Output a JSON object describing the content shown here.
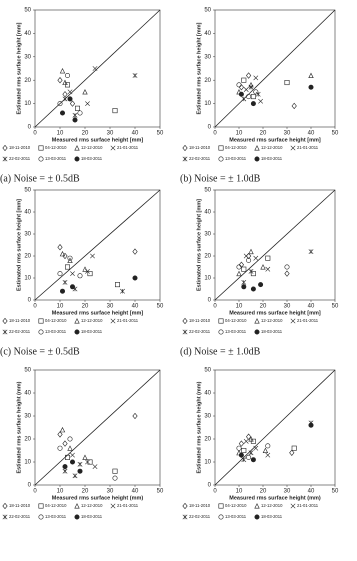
{
  "chart_data": [
    {
      "type": "scatter",
      "caption": "(a) Noise = ± 0.5dB",
      "xlabel": "Measured rms surface height [mm]",
      "ylabel": "Estimated rms surface height [mm]",
      "xlim": [
        0,
        50
      ],
      "ylim": [
        0,
        50
      ],
      "xticks": [
        0,
        10,
        20,
        30,
        40,
        50
      ],
      "yticks": [
        0,
        10,
        20,
        30,
        40,
        50
      ],
      "color": "#222222",
      "series": [
        {
          "name": "18-11-2010",
          "marker": "diamond",
          "x": [
            10,
            12,
            15
          ],
          "values": [
            20,
            14,
            10
          ]
        },
        {
          "name": "04-12-2010",
          "marker": "square",
          "x": [
            13,
            17,
            32
          ],
          "values": [
            18,
            8,
            7
          ]
        },
        {
          "name": "12-12-2010",
          "marker": "triangle",
          "x": [
            11,
            12,
            20
          ],
          "values": [
            24,
            19,
            15
          ]
        },
        {
          "name": "21-01-2011",
          "marker": "cross",
          "x": [
            14,
            21,
            24
          ],
          "values": [
            15,
            10,
            25
          ]
        },
        {
          "name": "22-02-2011",
          "marker": "star",
          "x": [
            12,
            16,
            40
          ],
          "values": [
            12,
            5,
            22
          ]
        },
        {
          "name": "13-03-2011",
          "marker": "circle",
          "x": [
            10,
            13,
            18
          ],
          "values": [
            10,
            22,
            6
          ]
        },
        {
          "name": "18-03-2011",
          "marker": "dot",
          "x": [
            11,
            14,
            16
          ],
          "values": [
            6,
            12,
            3
          ]
        }
      ]
    },
    {
      "type": "scatter",
      "caption": "(b) Noise = ± 1.0dB",
      "xlabel": "Measured rms surface height [mm]",
      "ylabel": "Estimated rms surface height [mm]",
      "xlim": [
        0,
        50
      ],
      "ylim": [
        0,
        50
      ],
      "xticks": [
        0,
        10,
        20,
        30,
        40,
        50
      ],
      "yticks": [
        0,
        10,
        20,
        30,
        40,
        50
      ],
      "color": "#222222",
      "series": [
        {
          "name": "18-11-2010",
          "marker": "diamond",
          "x": [
            11,
            14,
            33
          ],
          "values": [
            17,
            22,
            9
          ]
        },
        {
          "name": "04-12-2010",
          "marker": "square",
          "x": [
            12,
            16,
            30
          ],
          "values": [
            20,
            13,
            19
          ]
        },
        {
          "name": "12-12-2010",
          "marker": "triangle",
          "x": [
            10,
            15,
            40
          ],
          "values": [
            15,
            18,
            22
          ]
        },
        {
          "name": "21-01-2011",
          "marker": "cross",
          "x": [
            13,
            17,
            19
          ],
          "values": [
            16,
            21,
            11
          ]
        },
        {
          "name": "22-02-2011",
          "marker": "star",
          "x": [
            12,
            15,
            18
          ],
          "values": [
            12,
            17,
            14
          ]
        },
        {
          "name": "13-03-2011",
          "marker": "circle",
          "x": [
            10,
            14,
            17
          ],
          "values": [
            18,
            13,
            15
          ]
        },
        {
          "name": "18-03-2011",
          "marker": "dot",
          "x": [
            11,
            16,
            40
          ],
          "values": [
            14,
            10,
            17
          ]
        }
      ]
    },
    {
      "type": "scatter",
      "caption": "(c) Noise = ± 0.5dB",
      "xlabel": "Measured rms surface height [mm]",
      "ylabel": "Estimated rms surface height [mm]",
      "xlim": [
        0,
        50
      ],
      "ylim": [
        0,
        50
      ],
      "xticks": [
        0,
        10,
        20,
        30,
        40,
        50
      ],
      "yticks": [
        0,
        10,
        20,
        30,
        40,
        50
      ],
      "color": "#222222",
      "series": [
        {
          "name": "18-11-2010",
          "marker": "diamond",
          "x": [
            10,
            12,
            40
          ],
          "values": [
            24,
            20,
            22
          ]
        },
        {
          "name": "04-12-2010",
          "marker": "square",
          "x": [
            13,
            22,
            33
          ],
          "values": [
            15,
            12,
            7
          ]
        },
        {
          "name": "12-12-2010",
          "marker": "triangle",
          "x": [
            11,
            14,
            20
          ],
          "values": [
            21,
            18,
            14
          ]
        },
        {
          "name": "21-01-2011",
          "marker": "cross",
          "x": [
            15,
            21,
            23
          ],
          "values": [
            12,
            13,
            20
          ]
        },
        {
          "name": "22-02-2011",
          "marker": "star",
          "x": [
            12,
            16,
            35
          ],
          "values": [
            8,
            5,
            4
          ]
        },
        {
          "name": "13-03-2011",
          "marker": "circle",
          "x": [
            10,
            14,
            18
          ],
          "values": [
            12,
            19,
            11
          ]
        },
        {
          "name": "18-03-2011",
          "marker": "dot",
          "x": [
            11,
            15,
            40
          ],
          "values": [
            4,
            6,
            10
          ]
        }
      ]
    },
    {
      "type": "scatter",
      "caption": "(d) Noise = ± 1.0dB",
      "xlabel": "Measured rms surface height [mm]",
      "ylabel": "Estimated rms surface height [mm]",
      "xlim": [
        0,
        50
      ],
      "ylim": [
        0,
        50
      ],
      "xticks": [
        0,
        10,
        20,
        30,
        40,
        50
      ],
      "yticks": [
        0,
        10,
        20,
        30,
        40,
        50
      ],
      "color": "#222222",
      "series": [
        {
          "name": "18-11-2010",
          "marker": "diamond",
          "x": [
            11,
            14,
            30
          ],
          "values": [
            16,
            20,
            12
          ]
        },
        {
          "name": "04-12-2010",
          "marker": "square",
          "x": [
            12,
            16,
            22
          ],
          "values": [
            14,
            12,
            19
          ]
        },
        {
          "name": "12-12-2010",
          "marker": "triangle",
          "x": [
            10,
            15,
            20
          ],
          "values": [
            12,
            22,
            15
          ]
        },
        {
          "name": "21-01-2011",
          "marker": "cross",
          "x": [
            13,
            17,
            22
          ],
          "values": [
            20,
            19,
            14
          ]
        },
        {
          "name": "22-02-2011",
          "marker": "star",
          "x": [
            12,
            15,
            40
          ],
          "values": [
            8,
            13,
            22
          ]
        },
        {
          "name": "13-03-2011",
          "marker": "circle",
          "x": [
            10,
            14,
            30
          ],
          "values": [
            15,
            18,
            15
          ]
        },
        {
          "name": "18-03-2011",
          "marker": "dot",
          "x": [
            12,
            16,
            19
          ],
          "values": [
            6,
            5,
            7
          ]
        }
      ]
    },
    {
      "type": "scatter",
      "xlabel": "Measured rms surface height (mm)",
      "ylabel": "Estimated rms surface height (mm)",
      "xlim": [
        0,
        50
      ],
      "ylim": [
        0,
        50
      ],
      "xticks": [
        0,
        10,
        20,
        30,
        40,
        50
      ],
      "yticks": [
        0,
        10,
        20,
        30,
        40,
        50
      ],
      "color": "#222222",
      "series": [
        {
          "name": "18-11-2010",
          "marker": "diamond",
          "x": [
            10,
            12,
            40
          ],
          "values": [
            22,
            18,
            30
          ]
        },
        {
          "name": "04-12-2010",
          "marker": "square",
          "x": [
            13,
            22,
            32
          ],
          "values": [
            12,
            10,
            6
          ]
        },
        {
          "name": "12-12-2010",
          "marker": "triangle",
          "x": [
            11,
            14,
            20
          ],
          "values": [
            24,
            16,
            12
          ]
        },
        {
          "name": "21-01-2011",
          "marker": "cross",
          "x": [
            15,
            21,
            24
          ],
          "values": [
            13,
            10,
            8
          ]
        },
        {
          "name": "22-02-2011",
          "marker": "star",
          "x": [
            12,
            16,
            18
          ],
          "values": [
            6,
            4,
            9
          ]
        },
        {
          "name": "13-03-2011",
          "marker": "circle",
          "x": [
            10,
            14,
            32
          ],
          "values": [
            16,
            20,
            3
          ]
        },
        {
          "name": "18-03-2011",
          "marker": "dot",
          "x": [
            12,
            15,
            18
          ],
          "values": [
            8,
            10,
            6
          ]
        }
      ]
    },
    {
      "type": "scatter",
      "xlabel": "Measured rms surface height (mm)",
      "ylabel": "Estimated rms surface height (mm)",
      "xlim": [
        0,
        50
      ],
      "ylim": [
        0,
        50
      ],
      "xticks": [
        0,
        10,
        20,
        30,
        40,
        50
      ],
      "yticks": [
        0,
        10,
        20,
        30,
        40,
        50
      ],
      "color": "#222222",
      "series": [
        {
          "name": "18-11-2010",
          "marker": "diamond",
          "x": [
            11,
            14,
            32
          ],
          "values": [
            18,
            21,
            14
          ]
        },
        {
          "name": "04-12-2010",
          "marker": "square",
          "x": [
            12,
            16,
            33
          ],
          "values": [
            15,
            19,
            16
          ]
        },
        {
          "name": "12-12-2010",
          "marker": "triangle",
          "x": [
            10,
            15,
            21
          ],
          "values": [
            14,
            20,
            15
          ]
        },
        {
          "name": "21-01-2011",
          "marker": "cross",
          "x": [
            13,
            17,
            22
          ],
          "values": [
            19,
            16,
            13
          ]
        },
        {
          "name": "22-02-2011",
          "marker": "star",
          "x": [
            12,
            15,
            40
          ],
          "values": [
            11,
            14,
            27
          ]
        },
        {
          "name": "13-03-2011",
          "marker": "circle",
          "x": [
            10,
            14,
            22
          ],
          "values": [
            16,
            12,
            17
          ]
        },
        {
          "name": "18-03-2011",
          "marker": "dot",
          "x": [
            11,
            16,
            40
          ],
          "values": [
            13,
            11,
            26
          ]
        }
      ]
    }
  ]
}
